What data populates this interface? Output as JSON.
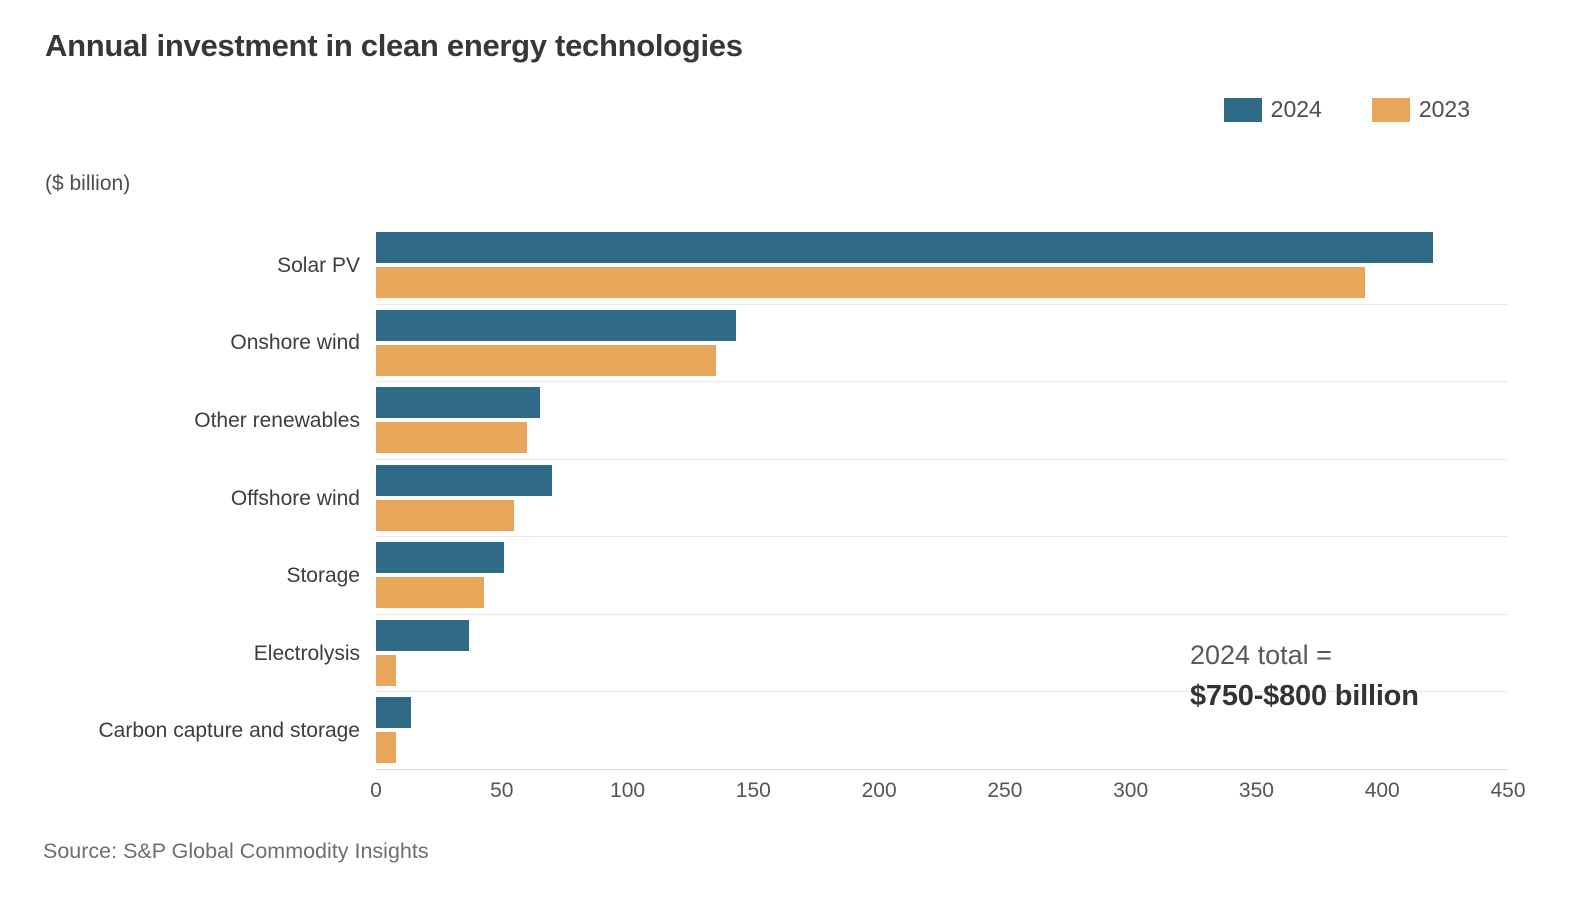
{
  "title": "Annual investment in clean energy technologies",
  "unit_label": "($ billion)",
  "legend": {
    "items": [
      {
        "label": "2024",
        "color": "#2F6A87"
      },
      {
        "label": "2023",
        "color": "#E8A65A"
      }
    ]
  },
  "annotation": {
    "line1": "2024 total =",
    "line2": "$750-$800 billion"
  },
  "source": "Source: S&P Global Commodity Insights",
  "chart_data": {
    "type": "bar",
    "orientation": "horizontal",
    "title": "Annual investment in clean energy technologies",
    "xlabel": "($ billion)",
    "ylabel": "",
    "categories": [
      "Solar PV",
      "Onshore wind",
      "Other renewables",
      "Offshore wind",
      "Storage",
      "Electrolysis",
      "Carbon capture and storage"
    ],
    "series": [
      {
        "name": "2024",
        "color": "#2F6A87",
        "values": [
          420,
          143,
          65,
          70,
          51,
          37,
          14
        ]
      },
      {
        "name": "2023",
        "color": "#E8A65A",
        "values": [
          393,
          135,
          60,
          55,
          43,
          8,
          8
        ]
      }
    ],
    "xlim": [
      0,
      450
    ],
    "xticks": [
      0,
      50,
      100,
      150,
      200,
      250,
      300,
      350,
      400,
      450
    ],
    "grid": "horizontal-row-separators",
    "legend_position": "top-right"
  }
}
